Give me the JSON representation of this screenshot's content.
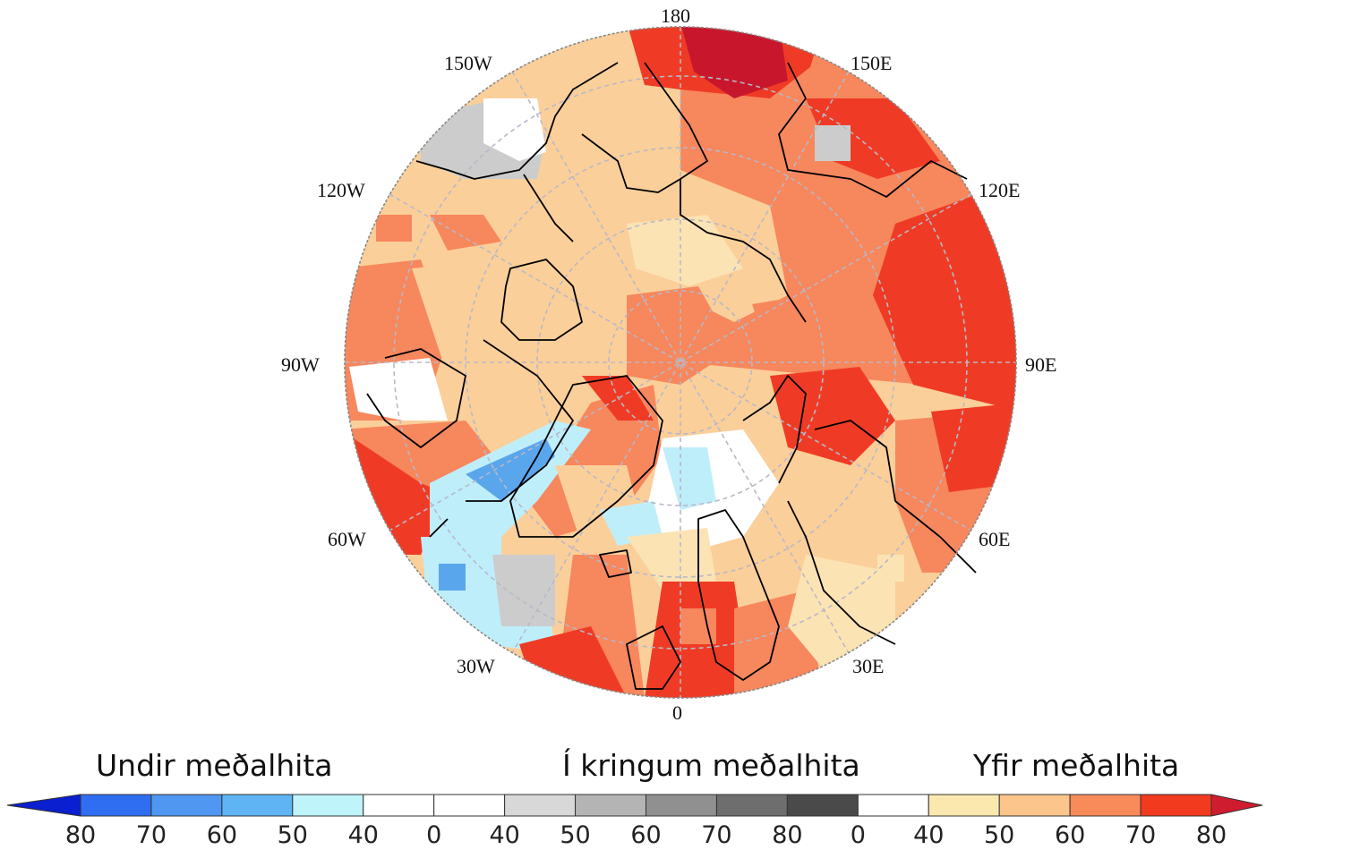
{
  "map": {
    "longitude_labels": {
      "lon_180": "180",
      "lon_150E": "150E",
      "lon_120E": "120E",
      "lon_90E": "90E",
      "lon_60E": "60E",
      "lon_30E": "30E",
      "lon_0": "0",
      "lon_30W": "30W",
      "lon_60W": "60W",
      "lon_90W": "90W",
      "lon_120W": "120W",
      "lon_150W": "150W"
    },
    "colors": {
      "near_white": "#ffffff",
      "light_tan": "#fbe3b4",
      "tan": "#fbcf9a",
      "orange": "#f7875d",
      "red": "#ef3b25",
      "dark_red": "#c8172c",
      "grey": "#cccccc",
      "light_blue": "#bfeefb",
      "blue": "#5aa6ec",
      "coast": "#000000",
      "grid": "#b8b8c8"
    }
  },
  "legend": {
    "below_label": "Undir meðalhita",
    "around_label": "Í kringum meðalhita",
    "above_label": "Yfir meðalhita",
    "ticks": [
      "80",
      "70",
      "60",
      "50",
      "40",
      "0",
      "40",
      "50",
      "60",
      "70",
      "80",
      "0",
      "40",
      "50",
      "60",
      "70",
      "80"
    ],
    "segment_colors": [
      "#0a1fd0",
      "#2f6ef0",
      "#4f97f0",
      "#5fb5f4",
      "#bff4fb",
      "#ffffff",
      "#ffffff",
      "#d8d8d8",
      "#b4b4b4",
      "#909090",
      "#6e6e6e",
      "#4a4a4a",
      "#ffffff",
      "#fbe8ae",
      "#fbc58c",
      "#f98a5a",
      "#f23a1f",
      "#d01c2f"
    ]
  }
}
